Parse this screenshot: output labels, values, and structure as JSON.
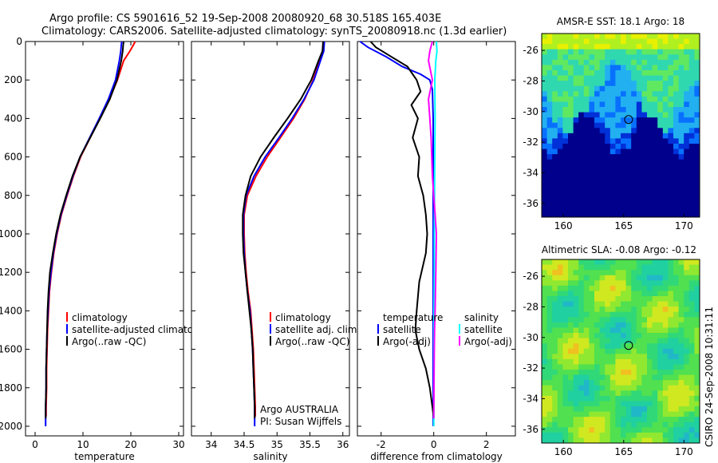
{
  "header": {
    "line1": "Argo profile: CS 5901616_52 19-Sep-2008 20080920_68 30.518S 165.403E",
    "line2": "Climatology: CARS2006. Satellite-adjusted climatology: synTS_20080918.nc (1.3d earlier)"
  },
  "side_label": "CSIRO 24-Sep-2008 10:31:11",
  "chart_data": [
    {
      "type": "line",
      "xlabel": "temperature",
      "xlim": [
        -2,
        31
      ],
      "ylim": [
        2050,
        0
      ],
      "xticks": [
        "0",
        "10",
        "20",
        "30"
      ],
      "yticks": [
        "0",
        "200",
        "400",
        "600",
        "800",
        "1000",
        "1200",
        "1400",
        "1600",
        "1800",
        "2000"
      ],
      "legend": [
        "climatology",
        "satellite-adjusted climatology",
        "Argo(..raw -QC)"
      ],
      "series": [
        {
          "name": "climatology",
          "color": "#ff0000",
          "points": [
            [
              20.9,
              0
            ],
            [
              20.5,
              20
            ],
            [
              19.8,
              50
            ],
            [
              18.5,
              100
            ],
            [
              17.2,
              200
            ],
            [
              15.5,
              300
            ],
            [
              13.5,
              400
            ],
            [
              11.5,
              500
            ],
            [
              9.5,
              600
            ],
            [
              8.0,
              700
            ],
            [
              6.7,
              800
            ],
            [
              5.5,
              900
            ],
            [
              4.6,
              1000
            ],
            [
              3.9,
              1100
            ],
            [
              3.4,
              1200
            ],
            [
              3.0,
              1300
            ],
            [
              2.8,
              1400
            ],
            [
              2.6,
              1500
            ],
            [
              2.5,
              1600
            ],
            [
              2.4,
              1700
            ],
            [
              2.4,
              1800
            ],
            [
              2.3,
              1900
            ],
            [
              2.3,
              1950
            ]
          ]
        },
        {
          "name": "satellite-adjusted climatology",
          "color": "#0000ff",
          "points": [
            [
              18.1,
              0
            ],
            [
              18.0,
              20
            ],
            [
              17.9,
              50
            ],
            [
              17.6,
              100
            ],
            [
              16.8,
              200
            ],
            [
              15.3,
              300
            ],
            [
              13.4,
              400
            ],
            [
              11.4,
              500
            ],
            [
              9.4,
              600
            ],
            [
              7.9,
              700
            ],
            [
              6.6,
              800
            ],
            [
              5.4,
              900
            ],
            [
              4.5,
              1000
            ],
            [
              3.8,
              1100
            ],
            [
              3.3,
              1200
            ],
            [
              2.9,
              1300
            ],
            [
              2.7,
              1400
            ],
            [
              2.5,
              1500
            ],
            [
              2.4,
              1600
            ],
            [
              2.3,
              1700
            ],
            [
              2.3,
              1800
            ],
            [
              2.2,
              1900
            ],
            [
              2.2,
              2000
            ]
          ]
        },
        {
          "name": "Argo(..raw -QC)",
          "color": "#000000",
          "points": [
            [
              18.5,
              0
            ],
            [
              18.4,
              20
            ],
            [
              18.3,
              50
            ],
            [
              18.0,
              100
            ],
            [
              17.1,
              200
            ],
            [
              15.6,
              300
            ],
            [
              13.6,
              400
            ],
            [
              11.5,
              500
            ],
            [
              9.4,
              600
            ],
            [
              7.8,
              700
            ],
            [
              6.5,
              800
            ],
            [
              5.3,
              900
            ],
            [
              4.4,
              1000
            ],
            [
              3.7,
              1100
            ],
            [
              3.1,
              1200
            ],
            [
              2.8,
              1300
            ],
            [
              2.6,
              1400
            ],
            [
              2.5,
              1500
            ],
            [
              2.4,
              1600
            ],
            [
              2.3,
              1700
            ],
            [
              2.3,
              1800
            ],
            [
              2.2,
              1900
            ],
            [
              2.2,
              1960
            ]
          ]
        }
      ]
    },
    {
      "type": "line",
      "xlabel": "salinity",
      "xlim": [
        33.7,
        36.1
      ],
      "ylim": [
        2050,
        0
      ],
      "xticks": [
        "34",
        "34.5",
        "35",
        "35.5",
        "36"
      ],
      "legend": [
        "climatology",
        "satellite adj. clim.",
        "Argo(..raw -QC)"
      ],
      "annotation": [
        "Argo AUSTRALIA",
        "PI: Susan Wijffels"
      ],
      "series": [
        {
          "name": "climatology",
          "color": "#ff0000",
          "points": [
            [
              35.7,
              0
            ],
            [
              35.7,
              50
            ],
            [
              35.65,
              100
            ],
            [
              35.55,
              200
            ],
            [
              35.42,
              300
            ],
            [
              35.25,
              400
            ],
            [
              35.05,
              500
            ],
            [
              34.85,
              600
            ],
            [
              34.68,
              700
            ],
            [
              34.55,
              800
            ],
            [
              34.5,
              900
            ],
            [
              34.5,
              1000
            ],
            [
              34.51,
              1100
            ],
            [
              34.53,
              1200
            ],
            [
              34.56,
              1300
            ],
            [
              34.6,
              1400
            ],
            [
              34.62,
              1500
            ],
            [
              34.64,
              1600
            ],
            [
              34.65,
              1700
            ],
            [
              34.66,
              1800
            ],
            [
              34.67,
              1900
            ],
            [
              34.67,
              1950
            ]
          ]
        },
        {
          "name": "satellite adj. clim.",
          "color": "#0000ff",
          "points": [
            [
              35.72,
              0
            ],
            [
              35.71,
              50
            ],
            [
              35.66,
              100
            ],
            [
              35.56,
              200
            ],
            [
              35.41,
              300
            ],
            [
              35.23,
              400
            ],
            [
              35.03,
              500
            ],
            [
              34.82,
              600
            ],
            [
              34.65,
              700
            ],
            [
              34.53,
              800
            ],
            [
              34.49,
              900
            ],
            [
              34.49,
              1000
            ],
            [
              34.5,
              1100
            ],
            [
              34.52,
              1200
            ],
            [
              34.55,
              1300
            ],
            [
              34.59,
              1400
            ],
            [
              34.61,
              1500
            ],
            [
              34.63,
              1600
            ],
            [
              34.64,
              1700
            ],
            [
              34.65,
              1800
            ],
            [
              34.66,
              1900
            ],
            [
              34.66,
              2000
            ]
          ]
        },
        {
          "name": "Argo(..raw -QC)",
          "color": "#000000",
          "points": [
            [
              35.7,
              0
            ],
            [
              35.69,
              50
            ],
            [
              35.63,
              100
            ],
            [
              35.52,
              200
            ],
            [
              35.36,
              300
            ],
            [
              35.16,
              400
            ],
            [
              34.95,
              500
            ],
            [
              34.75,
              600
            ],
            [
              34.6,
              700
            ],
            [
              34.52,
              800
            ],
            [
              34.48,
              900
            ],
            [
              34.48,
              1000
            ],
            [
              34.49,
              1100
            ],
            [
              34.52,
              1200
            ],
            [
              34.55,
              1300
            ],
            [
              34.58,
              1400
            ],
            [
              34.61,
              1500
            ],
            [
              34.63,
              1600
            ],
            [
              34.64,
              1700
            ],
            [
              34.65,
              1800
            ],
            [
              34.66,
              1900
            ],
            [
              34.66,
              1960
            ]
          ]
        }
      ]
    },
    {
      "type": "line",
      "xlabel": "difference from climatology",
      "xlim": [
        -2.9,
        3.1
      ],
      "ylim": [
        2050,
        0
      ],
      "xticks": [
        "-2",
        "0",
        "2"
      ],
      "legend_left_title": "temperature",
      "legend_right_title": "salinity",
      "legend_left": [
        "satellite",
        "Argo(-adj)"
      ],
      "legend_right": [
        "satellite",
        "Argo(-adj)"
      ],
      "series": [
        {
          "name": "temperature satellite",
          "color": "#0000ff",
          "points": [
            [
              -2.8,
              0
            ],
            [
              -2.5,
              30
            ],
            [
              -1.8,
              80
            ],
            [
              -1.2,
              130
            ],
            [
              -0.5,
              170
            ],
            [
              -0.15,
              200
            ],
            [
              -0.05,
              250
            ],
            [
              -0.02,
              400
            ],
            [
              -0.02,
              700
            ],
            [
              -0.02,
              1000
            ],
            [
              -0.02,
              1300
            ],
            [
              -0.02,
              1600
            ],
            [
              -0.02,
              2000
            ]
          ]
        },
        {
          "name": "temperature Argo(-adj)",
          "color": "#000000",
          "points": [
            [
              -2.4,
              0
            ],
            [
              -2.2,
              30
            ],
            [
              -1.6,
              80
            ],
            [
              -1.0,
              130
            ],
            [
              -0.8,
              170
            ],
            [
              -0.65,
              200
            ],
            [
              -0.5,
              260
            ],
            [
              -0.85,
              330
            ],
            [
              -0.6,
              400
            ],
            [
              -0.8,
              500
            ],
            [
              -0.55,
              600
            ],
            [
              -0.6,
              700
            ],
            [
              -0.4,
              800
            ],
            [
              -0.3,
              900
            ],
            [
              -0.25,
              1000
            ],
            [
              -0.3,
              1100
            ],
            [
              -0.55,
              1250
            ],
            [
              -0.65,
              1400
            ],
            [
              -0.7,
              1500
            ],
            [
              -0.55,
              1600
            ],
            [
              -0.3,
              1700
            ],
            [
              -0.15,
              1800
            ],
            [
              -0.05,
              1900
            ],
            [
              0.0,
              1960
            ]
          ]
        },
        {
          "name": "salinity satellite",
          "color": "#00ffff",
          "points": [
            [
              0.1,
              0
            ],
            [
              0.12,
              50
            ],
            [
              0.08,
              100
            ],
            [
              0.04,
              200
            ],
            [
              0.05,
              400
            ],
            [
              0.04,
              600
            ],
            [
              0.03,
              800
            ],
            [
              0.02,
              1000
            ],
            [
              0.02,
              1200
            ],
            [
              0.01,
              1400
            ],
            [
              0.01,
              1600
            ],
            [
              0.01,
              1800
            ],
            [
              0.0,
              2000
            ]
          ]
        },
        {
          "name": "salinity Argo(-adj)",
          "color": "#ff00ff",
          "points": [
            [
              -0.05,
              0
            ],
            [
              -0.15,
              50
            ],
            [
              -0.2,
              100
            ],
            [
              -0.05,
              200
            ],
            [
              -0.2,
              300
            ],
            [
              -0.15,
              400
            ],
            [
              -0.1,
              500
            ],
            [
              -0.05,
              700
            ],
            [
              0.0,
              800
            ],
            [
              0.05,
              900
            ],
            [
              0.1,
              1000
            ],
            [
              0.08,
              1200
            ],
            [
              0.05,
              1400
            ],
            [
              0.03,
              1500
            ],
            [
              0.02,
              1600
            ],
            [
              0.01,
              1800
            ],
            [
              0.0,
              1960
            ]
          ]
        }
      ]
    },
    {
      "type": "heatmap",
      "title": "AMSR-E SST: 18.1 Argo: 18",
      "xticks": [
        "160",
        "165",
        "170"
      ],
      "yticks": [
        "-26",
        "-28",
        "-30",
        "-32",
        "-34",
        "-36"
      ],
      "xlim": [
        158.2,
        171.3
      ],
      "ylim": [
        -36.9,
        -24.9
      ],
      "marker": {
        "lon": 165.403,
        "lat": -30.518
      },
      "colors": [
        "#00008c",
        "#0030d8",
        "#0870ff",
        "#22b0f0",
        "#30d8b0",
        "#60e860",
        "#b0f020",
        "#e8f000"
      ]
    },
    {
      "type": "heatmap",
      "title": "Altimetric SLA: -0.08 Argo: -0.12",
      "xticks": [
        "160",
        "165",
        "170"
      ],
      "yticks": [
        "-26",
        "-28",
        "-30",
        "-32",
        "-34",
        "-36"
      ],
      "xlim": [
        158.2,
        171.3
      ],
      "ylim": [
        -36.9,
        -24.9
      ],
      "marker": {
        "lon": 165.403,
        "lat": -30.518
      },
      "colors": [
        "#20b8c8",
        "#20d0a0",
        "#30d878",
        "#50e050",
        "#90e830",
        "#d0e820",
        "#f0c020"
      ]
    }
  ]
}
